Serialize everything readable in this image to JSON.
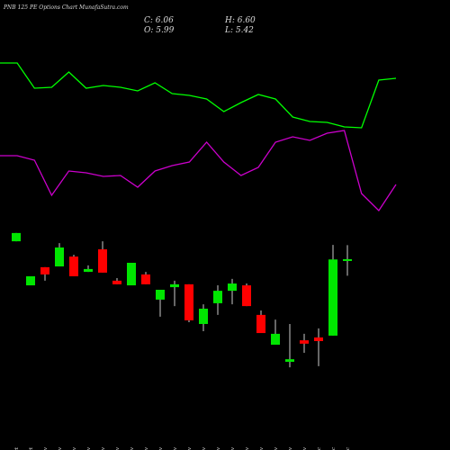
{
  "chart_data": {
    "type": "candlestick",
    "title": "PNB 125 PE Options Chart MunafaSutra.com",
    "summary": {
      "close": "C: 6.06",
      "high": "H: 6.60",
      "open": "O: 5.99",
      "low": "L: 5.42"
    },
    "categories": [
      "30 Oct",
      "31 Oct",
      "01 Nov",
      "04 Nov",
      "05 Nov",
      "06 Nov",
      "07 Nov",
      "08 Nov",
      "11 Nov",
      "12 Nov",
      "13 Nov",
      "14 Nov",
      "18 Nov",
      "19 Nov",
      "21 Nov",
      "22 Nov",
      "25 Nov",
      "26 Nov",
      "27 Nov",
      "28 Nov",
      "29 Nov",
      "02 Dec",
      "03 Dec",
      "04 Dec"
    ],
    "open": [
      6.75,
      5.05,
      5.75,
      5.78,
      6.16,
      5.57,
      6.44,
      5.23,
      5.05,
      5.47,
      4.5,
      4.98,
      5.09,
      3.56,
      4.36,
      4.84,
      5.05,
      3.91,
      2.76,
      2.1,
      2.93,
      3.04,
      3.11,
      5.99
    ],
    "high": [
      7.07,
      5.4,
      5.75,
      6.68,
      6.23,
      5.82,
      6.75,
      5.33,
      5.92,
      5.57,
      4.88,
      5.23,
      5.09,
      4.32,
      5.05,
      5.3,
      5.12,
      4.08,
      3.73,
      3.56,
      3.18,
      3.39,
      6.61,
      6.6
    ],
    "low": [
      6.75,
      5.05,
      5.23,
      5.78,
      5.4,
      5.57,
      5.54,
      5.09,
      5.05,
      5.09,
      3.84,
      4.25,
      3.63,
      3.28,
      3.91,
      4.32,
      4.25,
      3.21,
      2.76,
      1.89,
      2.45,
      1.93,
      3.11,
      5.42
    ],
    "close": [
      7.07,
      5.4,
      5.47,
      6.51,
      5.4,
      5.68,
      5.54,
      5.09,
      5.92,
      5.09,
      4.88,
      5.09,
      3.7,
      4.15,
      4.84,
      5.12,
      4.25,
      3.21,
      3.18,
      2.2,
      2.8,
      2.9,
      6.05,
      6.06
    ],
    "up_color": "#00e600",
    "down_color": "#ff0000",
    "ylim": [
      1.5,
      7.5
    ],
    "y2lim": [
      0,
      100
    ],
    "series": [
      {
        "color": "#00ff00",
        "axis": "y2",
        "values": [
          87.5,
          87.5,
          73.5,
          74,
          82.5,
          73.5,
          75,
          74,
          72,
          76.5,
          70.5,
          69.5,
          67.5,
          60.5,
          65.5,
          70,
          67.5,
          57.5,
          55,
          54.5,
          52,
          51.5,
          78,
          79
        ]
      },
      {
        "color": "#cc00cc",
        "axis": "y2",
        "values": [
          36,
          36,
          33.5,
          14,
          27.5,
          26.5,
          24.5,
          25,
          18.5,
          27.5,
          30.5,
          32.5,
          43.5,
          32.5,
          25,
          29.5,
          43.5,
          46.5,
          44.5,
          48.5,
          50,
          15,
          5.5,
          20
        ]
      }
    ]
  }
}
